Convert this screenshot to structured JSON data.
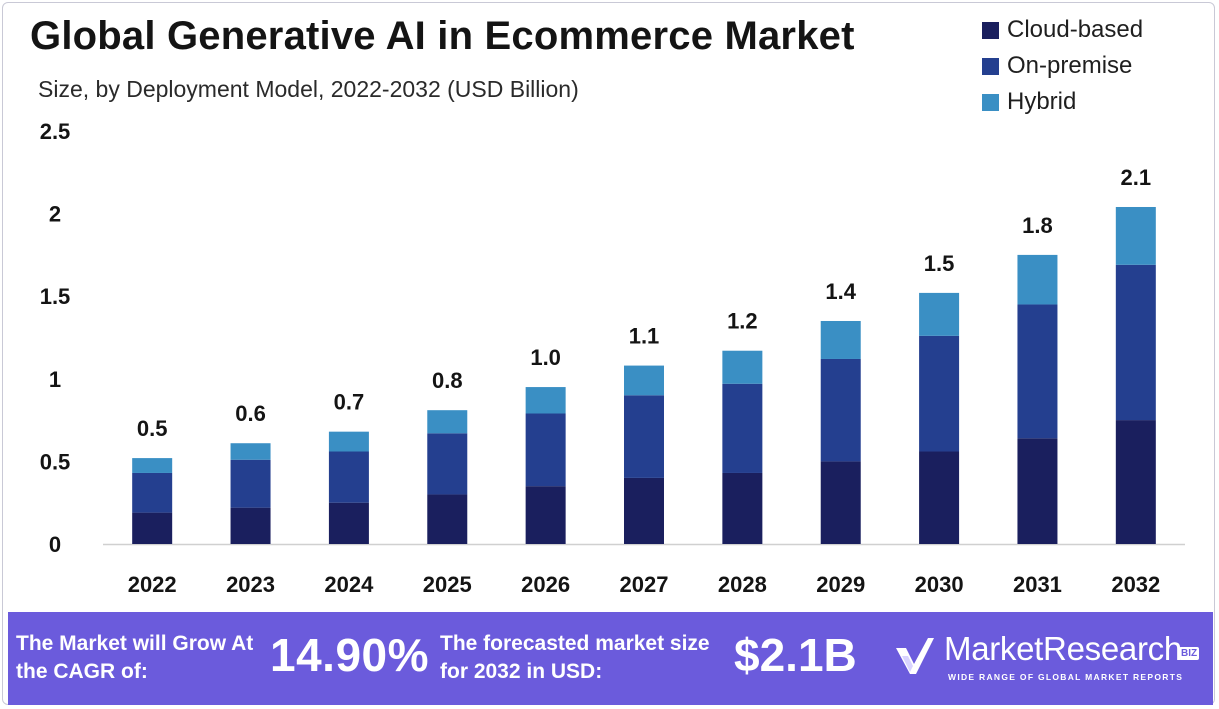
{
  "chart_data": {
    "type": "bar",
    "stacked": true,
    "title": "Global Generative AI in Ecommerce Market",
    "subtitle": "Size, by Deployment Model, 2022-2032 (USD Billion)",
    "xlabel": "",
    "ylabel": "",
    "ylim": [
      0,
      2.5
    ],
    "yticks": [
      0,
      0.5,
      1,
      1.5,
      2,
      2.5
    ],
    "ytick_labels": [
      "0",
      "0.5",
      "1",
      "1.5",
      "2",
      "2.5"
    ],
    "categories": [
      "2022",
      "2023",
      "2024",
      "2025",
      "2026",
      "2027",
      "2028",
      "2029",
      "2030",
      "2031",
      "2032"
    ],
    "series": [
      {
        "name": "Cloud-based",
        "color": "#1a1f5e",
        "values": [
          0.19,
          0.22,
          0.25,
          0.3,
          0.35,
          0.4,
          0.43,
          0.5,
          0.56,
          0.64,
          0.75
        ]
      },
      {
        "name": "On-premise",
        "color": "#243f8f",
        "values": [
          0.24,
          0.29,
          0.31,
          0.37,
          0.44,
          0.5,
          0.54,
          0.62,
          0.7,
          0.81,
          0.94
        ]
      },
      {
        "name": "Hybrid",
        "color": "#3a8fc4",
        "values": [
          0.09,
          0.1,
          0.12,
          0.14,
          0.16,
          0.18,
          0.2,
          0.23,
          0.26,
          0.3,
          0.35
        ]
      }
    ],
    "total_labels": [
      "0.5",
      "0.6",
      "0.7",
      "0.8",
      "1.0",
      "1.1",
      "1.2",
      "1.4",
      "1.5",
      "1.8",
      "2.1"
    ],
    "legend_position": "top-right",
    "grid": false
  },
  "footer": {
    "cagr_text": "The Market will Grow At the CAGR of:",
    "cagr_value": "14.90%",
    "forecast_text": "The forecasted market size for 2032 in USD:",
    "forecast_value": "$2.1B",
    "brand_name": "MarketResearch",
    "brand_biz": "BIZ",
    "brand_tagline": "WIDE RANGE OF GLOBAL MARKET REPORTS",
    "brand_icon": "checkmark-logo-icon"
  },
  "colors": {
    "footer_background": "#6b5bdc",
    "text_dark": "#141414"
  }
}
